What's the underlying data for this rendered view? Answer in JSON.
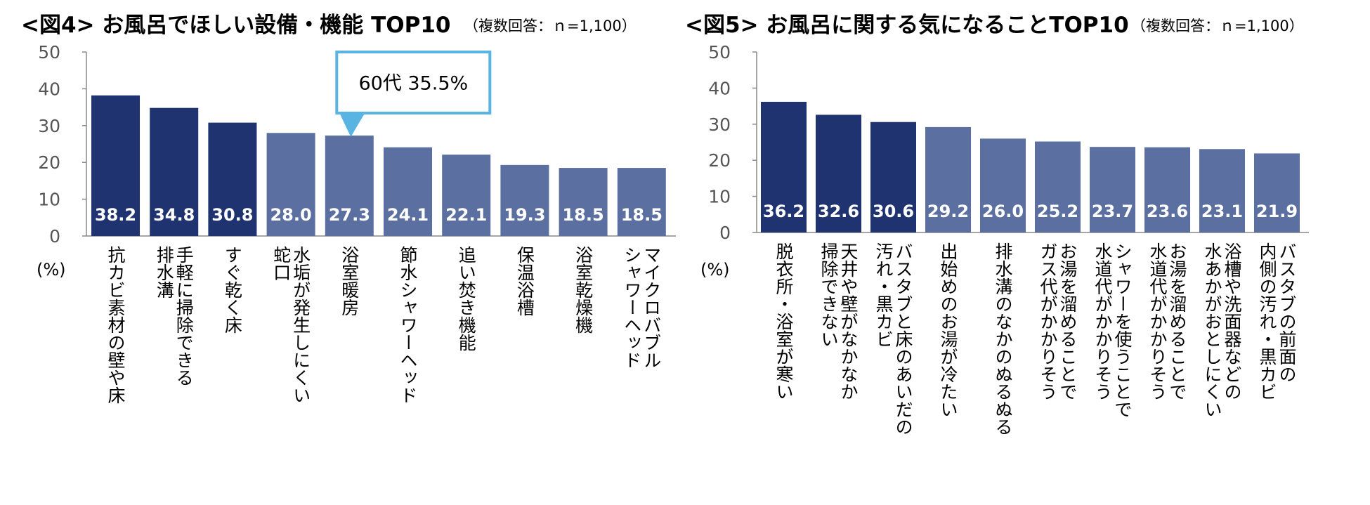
{
  "colors": {
    "dark": "#1f3370",
    "light": "#5b6fa0",
    "axis": "#888888",
    "callout": "#5ab4e3"
  },
  "chart_data": [
    {
      "type": "bar",
      "title": "<図4> お風呂でほしい設備・機能 TOP10",
      "note": "（複数回答：ｎ=1,100）",
      "ylabel": "(%)",
      "ylim": [
        0,
        50
      ],
      "yticks": [
        0,
        10,
        20,
        30,
        40,
        50
      ],
      "grid": false,
      "categories": [
        [
          "抗カビ素材の壁や床"
        ],
        [
          "手軽に掃除できる",
          "排水溝"
        ],
        [
          "すぐ乾く床"
        ],
        [
          "水垢が発生しにくい",
          "蛇口"
        ],
        [
          "浴室暖房"
        ],
        [
          "節水シャワーヘッド"
        ],
        [
          "追い焚き機能"
        ],
        [
          "保温浴槽"
        ],
        [
          "浴室乾燥機"
        ],
        [
          "マイクロバブル",
          "シャワーヘッド"
        ]
      ],
      "values": [
        38.2,
        34.8,
        30.8,
        28.0,
        27.3,
        24.1,
        22.1,
        19.3,
        18.5,
        18.5
      ],
      "highlight_count": 3,
      "annotation": {
        "text": "60代 35.5%",
        "category_index": 4
      }
    },
    {
      "type": "bar",
      "title": "<図5> お風呂に関する気になることTOP10",
      "note": "（複数回答：ｎ=1,100）",
      "ylabel": "(%)",
      "ylim": [
        0,
        50
      ],
      "yticks": [
        0,
        10,
        20,
        30,
        40,
        50
      ],
      "grid": false,
      "categories": [
        [
          "脱衣所・浴室が寒い"
        ],
        [
          "天井や壁がなかなか",
          "掃除できない"
        ],
        [
          "バスタブと床のあいだの",
          "汚れ・黒カビ"
        ],
        [
          "出始めのお湯が冷たい"
        ],
        [
          "排水溝のなかのぬるぬる"
        ],
        [
          "お湯を溜めることで",
          "ガス代がかかりそう"
        ],
        [
          "シャワーを使うことで",
          "水道代がかかりそう"
        ],
        [
          "お湯を溜めることで",
          "水道代がかかりそう"
        ],
        [
          "浴槽や洗面器などの",
          "水あかがおとしにくい"
        ],
        [
          "バスタブの前面の",
          "内側の汚れ・黒カビ"
        ]
      ],
      "values": [
        36.2,
        32.6,
        30.6,
        29.2,
        26.0,
        25.2,
        23.7,
        23.6,
        23.1,
        21.9
      ],
      "highlight_count": 3
    }
  ]
}
